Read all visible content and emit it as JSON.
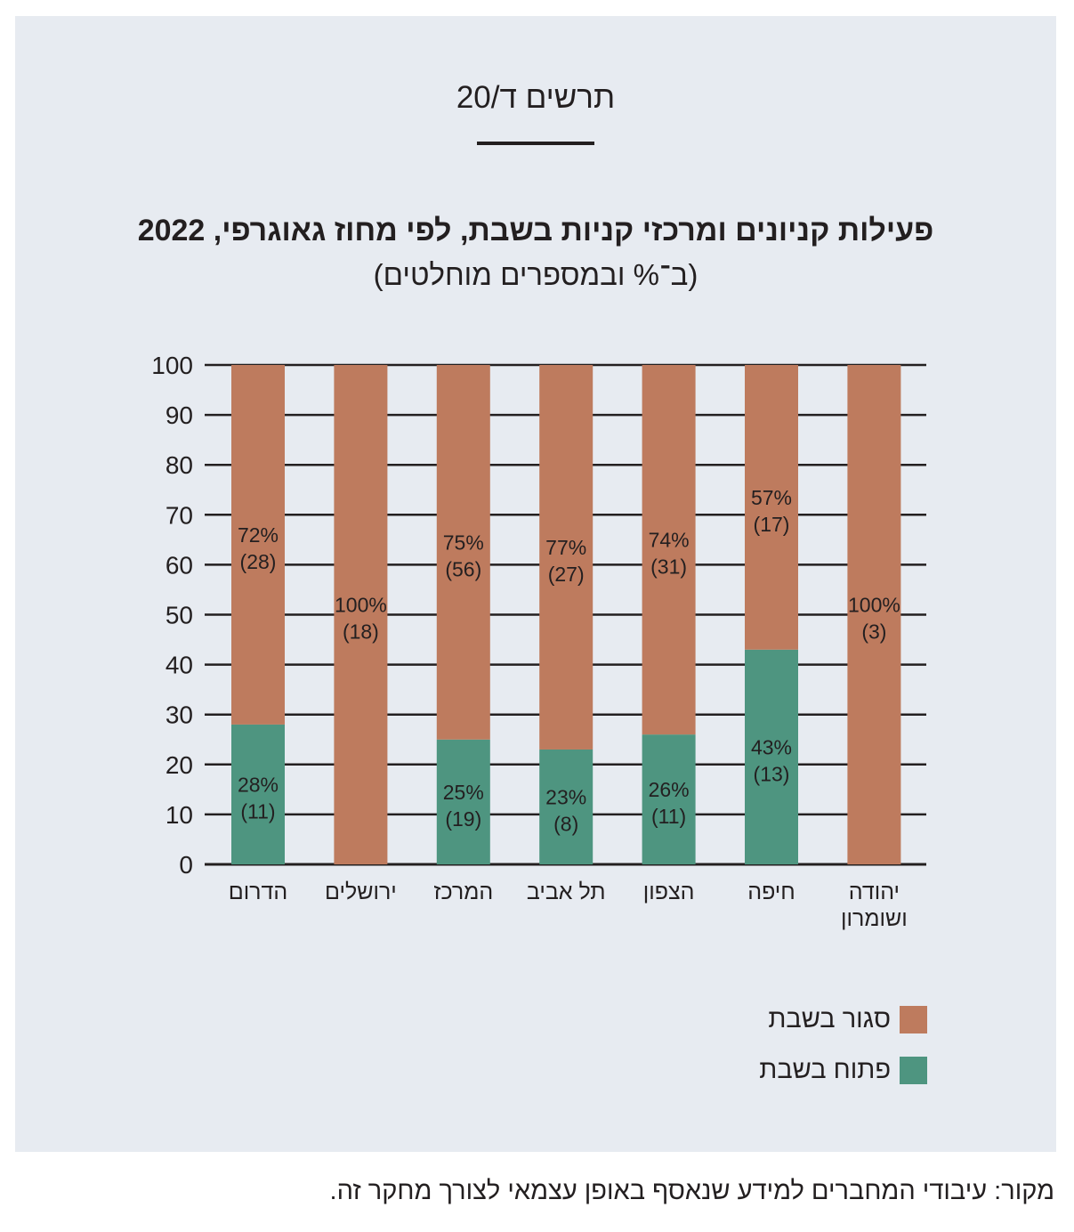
{
  "figure_label": "תרשים ד/20",
  "chart_data": {
    "type": "bar",
    "stacked": true,
    "title": "פעילות קניונים ומרכזי קניות בשבת, לפי מחוז גאוגרפי, 2022",
    "subtitle": "(ב־% ובמספרים מוחלטים)",
    "categories": [
      [
        "הדרום"
      ],
      [
        "ירושלים"
      ],
      [
        "המרכז"
      ],
      [
        "תל אביב"
      ],
      [
        "הצפון"
      ],
      [
        "חיפה"
      ],
      [
        "יהודה",
        "ושומרון"
      ]
    ],
    "series": [
      {
        "name": "פתוח בשבת",
        "color": "#4e9580",
        "values": [
          28,
          0,
          25,
          23,
          26,
          43,
          0
        ],
        "counts": [
          11,
          0,
          19,
          8,
          11,
          13,
          0
        ],
        "labels": [
          "28%",
          "",
          "25%",
          "23%",
          "26%",
          "43%",
          ""
        ],
        "count_labels": [
          "(11)",
          "",
          "(19)",
          "(8)",
          "(11)",
          "(13)",
          ""
        ]
      },
      {
        "name": "סגור בשבת",
        "color": "#be7b5e",
        "values": [
          72,
          100,
          75,
          77,
          74,
          57,
          100
        ],
        "counts": [
          28,
          18,
          56,
          27,
          31,
          17,
          3
        ],
        "labels": [
          "72%",
          "100%",
          "75%",
          "77%",
          "74%",
          "57%",
          "100%"
        ],
        "count_labels": [
          "(28)",
          "(18)",
          "(56)",
          "(27)",
          "(31)",
          "(17)",
          "(3)"
        ]
      }
    ],
    "ylim": [
      0,
      100
    ],
    "yticks": [
      0,
      10,
      20,
      30,
      40,
      50,
      60,
      70,
      80,
      90,
      100
    ],
    "grid": true,
    "legend": [
      {
        "label": "סגור בשבת",
        "color": "#be7b5e"
      },
      {
        "label": "פתוח בשבת",
        "color": "#4e9580"
      }
    ],
    "legend_position": "bottom-right"
  },
  "source": "מקור: עיבודי המחברים למידע שנאסף באופן עצמאי לצורך מחקר זה."
}
